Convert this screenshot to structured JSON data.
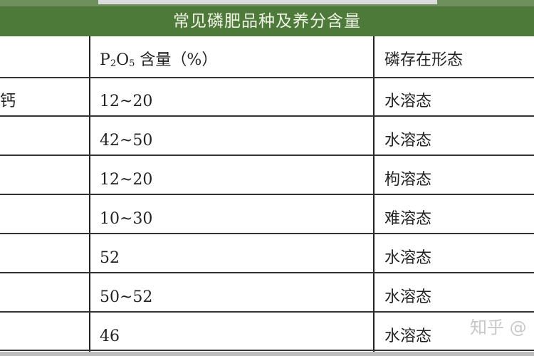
{
  "title": "常见磷肥品种及养分含量",
  "headers": {
    "col1": "",
    "col2_prefix": "P",
    "col2_sub1": "2",
    "col2_mid": "O",
    "col2_sub2": "5",
    "col2_suffix": " 含量（%）",
    "col3": "磷存在形态"
  },
  "rows": [
    {
      "name": "钙",
      "content": "12~20",
      "form": "水溶态"
    },
    {
      "name": "",
      "content": "42~50",
      "form": "水溶态"
    },
    {
      "name": "",
      "content": "12~20",
      "form": "枸溶态"
    },
    {
      "name": "",
      "content": "10~30",
      "form": "难溶态"
    },
    {
      "name": "",
      "content": "52",
      "form": "水溶态"
    },
    {
      "name": "",
      "content": "50~52",
      "form": "水溶态"
    },
    {
      "name": "",
      "content": "46",
      "form": "水溶态"
    }
  ],
  "watermark": "知乎 @",
  "colors": {
    "header_green": "#4d7a38"
  }
}
